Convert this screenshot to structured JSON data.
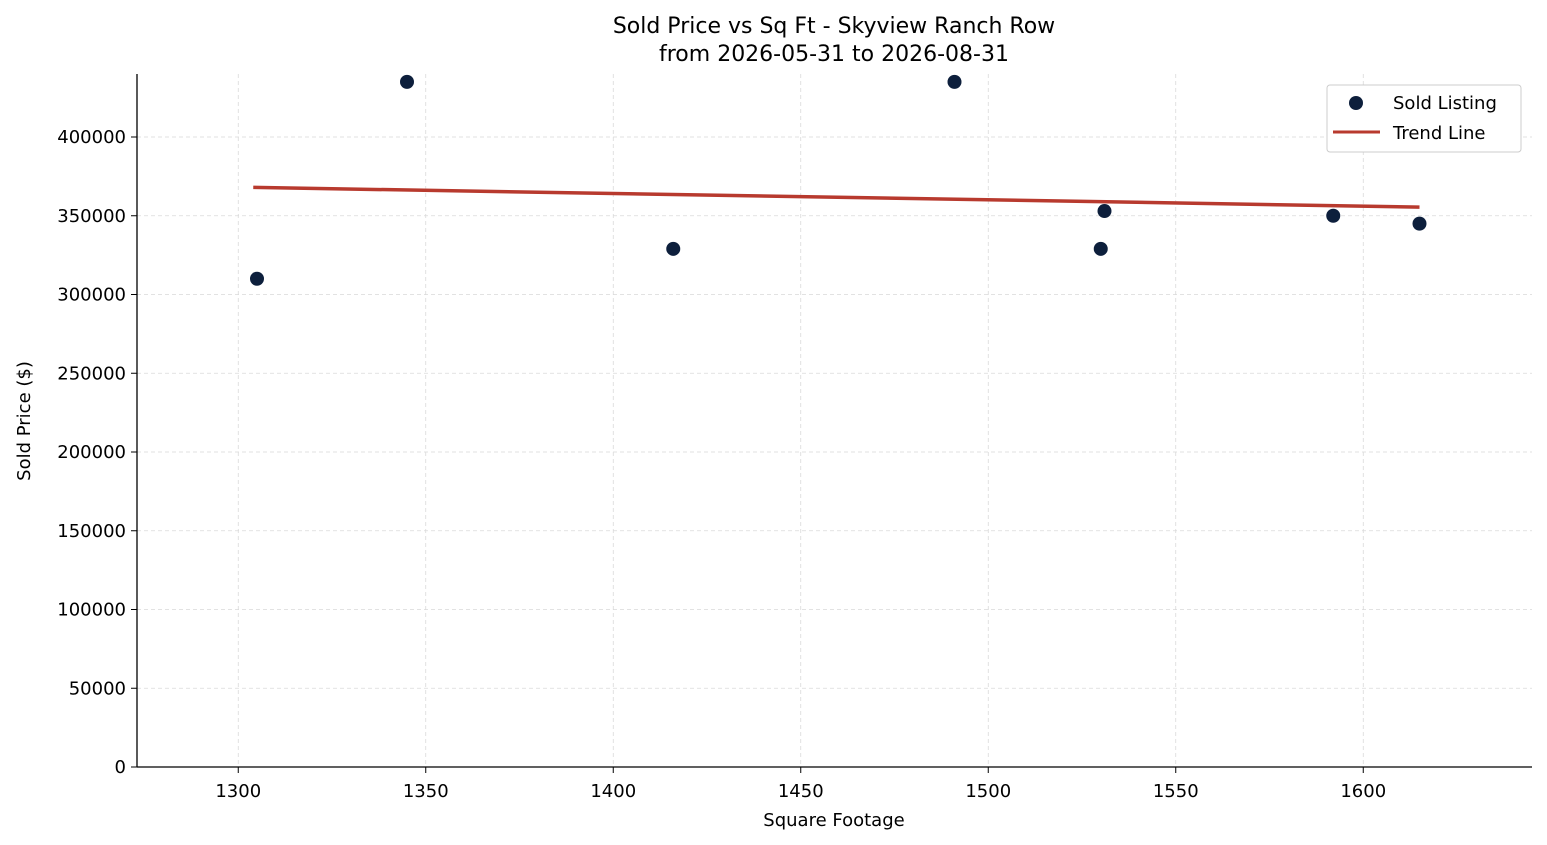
{
  "chart_data": {
    "type": "scatter",
    "title": "Sold Price vs Sq Ft - Skyview Ranch Row",
    "subtitle": "from 2026-05-31 to 2026-08-31",
    "xlabel": "Square Footage",
    "ylabel": "Sold Price ($)",
    "xlim": [
      1273,
      1645
    ],
    "ylim": [
      0,
      440000
    ],
    "x_ticks": [
      1300,
      1350,
      1400,
      1450,
      1500,
      1550,
      1600
    ],
    "y_ticks": [
      0,
      50000,
      100000,
      150000,
      200000,
      250000,
      300000,
      350000,
      400000
    ],
    "grid": true,
    "legend_position": "top-right",
    "series": [
      {
        "name": "Sold Listing",
        "type": "scatter",
        "color": "#0d1f3c",
        "points": [
          {
            "x": 1305,
            "y": 310000
          },
          {
            "x": 1345,
            "y": 435000
          },
          {
            "x": 1416,
            "y": 329000
          },
          {
            "x": 1491,
            "y": 435000
          },
          {
            "x": 1530,
            "y": 329000
          },
          {
            "x": 1531,
            "y": 353000
          },
          {
            "x": 1592,
            "y": 350000
          },
          {
            "x": 1615,
            "y": 345000
          }
        ]
      },
      {
        "name": "Trend Line",
        "type": "line",
        "color": "#b83a2e",
        "points": [
          {
            "x": 1304,
            "y": 368000
          },
          {
            "x": 1615,
            "y": 355500
          }
        ]
      }
    ]
  }
}
